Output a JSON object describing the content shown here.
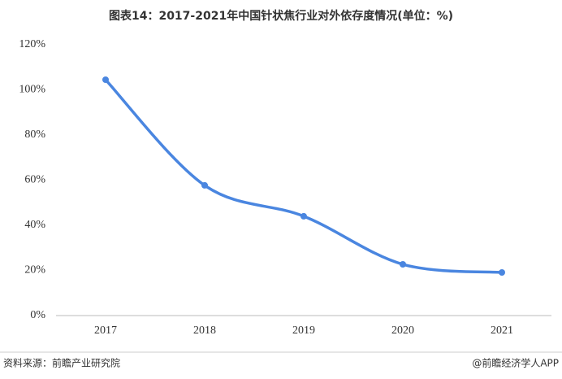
{
  "chart_data": {
    "type": "line",
    "title": "图表14：2017-2021年中国针状焦行业对外依存度情况(单位：%)",
    "categories": [
      "2017",
      "2018",
      "2019",
      "2020",
      "2021"
    ],
    "series": [
      {
        "name": "对外依存度",
        "color": "#4a86e0",
        "values": [
          104.5,
          57.7,
          44,
          22.7,
          19.1
        ]
      }
    ],
    "ylim": [
      0,
      120
    ],
    "yticks": [
      {
        "value": 0,
        "label": "0%"
      },
      {
        "value": 20,
        "label": "20%"
      },
      {
        "value": 40,
        "label": "40%"
      },
      {
        "value": 60,
        "label": "60%"
      },
      {
        "value": 80,
        "label": "80%"
      },
      {
        "value": 100,
        "label": "100%"
      },
      {
        "value": 120,
        "label": "120%"
      }
    ],
    "grid": false,
    "source": "资料来源：前瞻产业研究院",
    "credit": "@前瞻经济学人APP"
  }
}
